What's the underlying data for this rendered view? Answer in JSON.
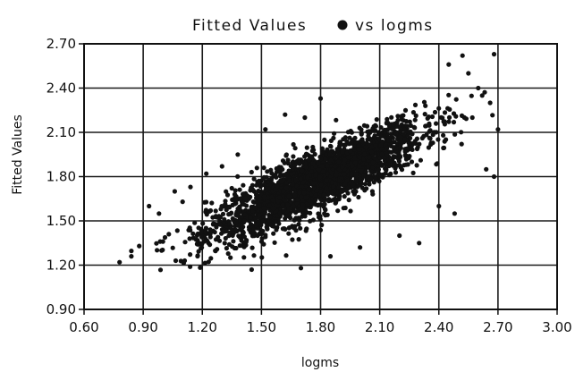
{
  "chart_data": {
    "type": "scatter",
    "title_parts": [
      "Fitted Values",
      "vs logms"
    ],
    "title_marker_icon": "filled-circle-icon",
    "xlabel": "logms",
    "ylabel": "Fitted Values",
    "xlim": [
      0.6,
      3.0
    ],
    "ylim": [
      0.9,
      2.7
    ],
    "x_ticks": [
      "0.60",
      "0.90",
      "1.20",
      "1.50",
      "1.80",
      "2.10",
      "2.40",
      "2.70",
      "3.00"
    ],
    "y_ticks": [
      "0.90",
      "1.20",
      "1.50",
      "1.80",
      "2.10",
      "2.40",
      "2.70"
    ],
    "grid": true,
    "point_color": "#111111",
    "series": [
      {
        "points_note": "",
        "cloud": {
          "n_points": 2600,
          "x_center": 1.78,
          "x_sd": 0.27,
          "x_min": 0.78,
          "x_max": 2.7,
          "slope": 0.62,
          "intercept": 0.66,
          "residual_sd": 0.1,
          "y_min": 1.15,
          "y_max": 2.65
        },
        "outliers": [
          [
            0.78,
            1.22
          ],
          [
            0.84,
            1.26
          ],
          [
            0.88,
            1.33
          ],
          [
            0.93,
            1.6
          ],
          [
            0.98,
            1.55
          ],
          [
            1.0,
            1.36
          ],
          [
            1.03,
            1.41
          ],
          [
            1.06,
            1.7
          ],
          [
            1.1,
            1.63
          ],
          [
            1.14,
            1.73
          ],
          [
            1.22,
            1.82
          ],
          [
            1.3,
            1.87
          ],
          [
            1.38,
            1.95
          ],
          [
            1.52,
            2.12
          ],
          [
            1.62,
            2.22
          ],
          [
            1.72,
            2.2
          ],
          [
            1.8,
            2.33
          ],
          [
            2.3,
            1.35
          ],
          [
            2.4,
            1.6
          ],
          [
            2.48,
            1.55
          ],
          [
            2.52,
            2.62
          ],
          [
            2.55,
            2.5
          ],
          [
            2.6,
            2.4
          ],
          [
            2.62,
            2.35
          ],
          [
            2.66,
            2.3
          ],
          [
            2.68,
            2.63
          ],
          [
            2.7,
            2.12
          ],
          [
            2.64,
            1.85
          ],
          [
            2.68,
            1.8
          ],
          [
            2.45,
            2.56
          ],
          [
            2.57,
            2.2
          ],
          [
            2.2,
            1.4
          ],
          [
            1.45,
            1.17
          ],
          [
            1.7,
            1.18
          ],
          [
            1.85,
            1.26
          ],
          [
            2.0,
            1.32
          ]
        ]
      }
    ]
  }
}
